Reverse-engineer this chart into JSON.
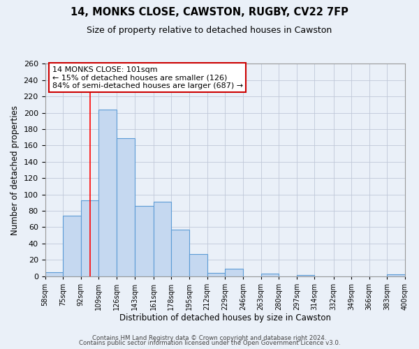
{
  "title": "14, MONKS CLOSE, CAWSTON, RUGBY, CV22 7FP",
  "subtitle": "Size of property relative to detached houses in Cawston",
  "xlabel": "Distribution of detached houses by size in Cawston",
  "ylabel": "Number of detached properties",
  "bin_labels": [
    "58sqm",
    "75sqm",
    "92sqm",
    "109sqm",
    "126sqm",
    "143sqm",
    "161sqm",
    "178sqm",
    "195sqm",
    "212sqm",
    "229sqm",
    "246sqm",
    "263sqm",
    "280sqm",
    "297sqm",
    "314sqm",
    "332sqm",
    "349sqm",
    "366sqm",
    "383sqm",
    "400sqm"
  ],
  "bin_edges": [
    58,
    75,
    92,
    109,
    126,
    143,
    161,
    178,
    195,
    212,
    229,
    246,
    263,
    280,
    297,
    314,
    332,
    349,
    366,
    383,
    400
  ],
  "bar_heights": [
    5,
    74,
    93,
    204,
    169,
    86,
    91,
    57,
    27,
    4,
    9,
    0,
    3,
    0,
    1,
    0,
    0,
    0,
    0,
    2
  ],
  "bar_color": "#c5d8f0",
  "bar_edge_color": "#5b9bd5",
  "grid_color": "#c0c8d8",
  "background_color": "#eaf0f8",
  "red_line_x": 101,
  "annotation_text": "14 MONKS CLOSE: 101sqm\n← 15% of detached houses are smaller (126)\n84% of semi-detached houses are larger (687) →",
  "annotation_box_color": "#ffffff",
  "annotation_box_edge_color": "#cc0000",
  "ylim": [
    0,
    260
  ],
  "yticks": [
    0,
    20,
    40,
    60,
    80,
    100,
    120,
    140,
    160,
    180,
    200,
    220,
    240,
    260
  ],
  "footer_line1": "Contains HM Land Registry data © Crown copyright and database right 2024.",
  "footer_line2": "Contains public sector information licensed under the Open Government Licence v3.0.",
  "title_fontsize": 10.5,
  "subtitle_fontsize": 9,
  "annotation_fontsize": 8,
  "xlabel_fontsize": 8.5,
  "ylabel_fontsize": 8.5,
  "xtick_fontsize": 7,
  "ytick_fontsize": 8
}
